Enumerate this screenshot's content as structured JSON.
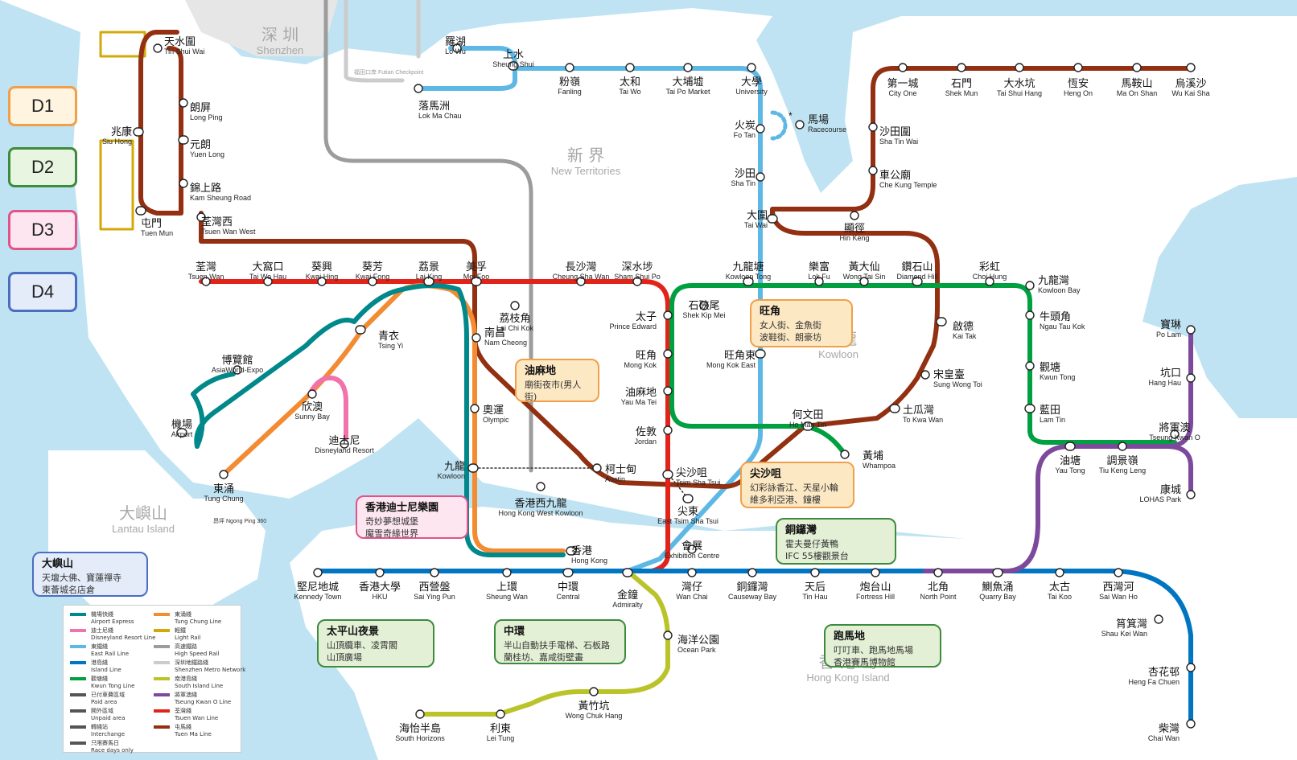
{
  "districts": [
    {
      "label": "D1",
      "color": "#f0a04a",
      "bg": "#fff4e0"
    },
    {
      "label": "D2",
      "color": "#3d8b3d",
      "bg": "#e8f5e0"
    },
    {
      "label": "D3",
      "color": "#e0548a",
      "bg": "#fde6ef"
    },
    {
      "label": "D4",
      "color": "#4a6fc0",
      "bg": "#e4ecfa"
    }
  ],
  "regions": [
    {
      "zh": "深 圳",
      "en": "Shenzhen"
    },
    {
      "zh": "新 界",
      "en": "New Territories"
    },
    {
      "zh": "九 龍",
      "en": "Kowloon"
    },
    {
      "zh": "大嶼山",
      "en": "Lantau Island"
    },
    {
      "zh": "香 港 島",
      "en": "Hong Kong Island"
    }
  ],
  "line_colors": {
    "east_rail": "#5eb8e6",
    "tuen_ma": "#923011",
    "tsuen_wan": "#e2231a",
    "kwun_tong": "#00a040",
    "island": "#0075c2",
    "tung_chung": "#f38b32",
    "airport": "#00888a",
    "disneyland": "#f173ac",
    "tseung_kwan_o": "#7d499d",
    "south_island": "#bac429",
    "light_rail": "#d3a809",
    "high_speed": "#9c9c9c"
  },
  "stations": [
    {
      "zh": "天水圍",
      "en": "Tin Shui Wai"
    },
    {
      "zh": "朗屏",
      "en": "Long Ping"
    },
    {
      "zh": "兆康",
      "en": "Siu Hong"
    },
    {
      "zh": "元朗",
      "en": "Yuen Long"
    },
    {
      "zh": "錦上路",
      "en": "Kam Sheung Road"
    },
    {
      "zh": "屯門",
      "en": "Tuen Mun"
    },
    {
      "zh": "荃灣西",
      "en": "Tsuen Wan West"
    },
    {
      "zh": "羅湖",
      "en": "Lo Wu"
    },
    {
      "zh": "上水",
      "en": "Sheung Shui"
    },
    {
      "zh": "落馬洲",
      "en": "Lok Ma Chau"
    },
    {
      "zh": "粉嶺",
      "en": "Fanling"
    },
    {
      "zh": "太和",
      "en": "Tai Wo"
    },
    {
      "zh": "大埔墟",
      "en": "Tai Po Market"
    },
    {
      "zh": "大學",
      "en": "University"
    },
    {
      "zh": "火炭",
      "en": "Fo Tan"
    },
    {
      "zh": "馬場",
      "en": "Racecourse"
    },
    {
      "zh": "沙田",
      "en": "Sha Tin"
    },
    {
      "zh": "大圍",
      "en": "Tai Wai"
    },
    {
      "zh": "第一城",
      "en": "City One"
    },
    {
      "zh": "石門",
      "en": "Shek Mun"
    },
    {
      "zh": "大水坑",
      "en": "Tai Shui Hang"
    },
    {
      "zh": "恆安",
      "en": "Heng On"
    },
    {
      "zh": "馬鞍山",
      "en": "Ma On Shan"
    },
    {
      "zh": "烏溪沙",
      "en": "Wu Kai Sha"
    },
    {
      "zh": "沙田圍",
      "en": "Sha Tin Wai"
    },
    {
      "zh": "車公廟",
      "en": "Che Kung Temple"
    },
    {
      "zh": "顯徑",
      "en": "Hin Keng"
    },
    {
      "zh": "荃灣",
      "en": "Tsuen Wan"
    },
    {
      "zh": "大窩口",
      "en": "Tai Wo Hau"
    },
    {
      "zh": "葵興",
      "en": "Kwai Hing"
    },
    {
      "zh": "葵芳",
      "en": "Kwai Fong"
    },
    {
      "zh": "荔景",
      "en": "Lai King"
    },
    {
      "zh": "美孚",
      "en": "Mei Foo"
    },
    {
      "zh": "長沙灣",
      "en": "Cheung Sha Wan"
    },
    {
      "zh": "深水埗",
      "en": "Sham Shui Po"
    },
    {
      "zh": "九龍塘",
      "en": "Kowloon Tong"
    },
    {
      "zh": "樂富",
      "en": "Lok Fu"
    },
    {
      "zh": "黃大仙",
      "en": "Wong Tai Sin"
    },
    {
      "zh": "鑽石山",
      "en": "Diamond Hill"
    },
    {
      "zh": "彩虹",
      "en": "Choi Hung"
    },
    {
      "zh": "九龍灣",
      "en": "Kowloon Bay"
    },
    {
      "zh": "荔枝角",
      "en": "Lai Chi Kok"
    },
    {
      "zh": "石硤尾",
      "en": "Shek Kip Mei"
    },
    {
      "zh": "太子",
      "en": "Prince Edward"
    },
    {
      "zh": "旺角",
      "en": "Mong Kok"
    },
    {
      "zh": "旺角東",
      "en": "Mong Kok East"
    },
    {
      "zh": "油麻地",
      "en": "Yau Ma Tei"
    },
    {
      "zh": "佐敦",
      "en": "Jordan"
    },
    {
      "zh": "尖沙咀",
      "en": "Tsim Sha Tsui"
    },
    {
      "zh": "尖東",
      "en": "East Tsim Sha Tsui"
    },
    {
      "zh": "南昌",
      "en": "Nam Cheong"
    },
    {
      "zh": "奧運",
      "en": "Olympic"
    },
    {
      "zh": "九龍",
      "en": "Kowloon"
    },
    {
      "zh": "柯士甸",
      "en": "Austin"
    },
    {
      "zh": "香港西九龍",
      "en": "Hong Kong West Kowloon"
    },
    {
      "zh": "青衣",
      "en": "Tsing Yi"
    },
    {
      "zh": "博覽館",
      "en": "AsiaWorld-Expo"
    },
    {
      "zh": "機場",
      "en": "Airport"
    },
    {
      "zh": "欣澳",
      "en": "Sunny Bay"
    },
    {
      "zh": "迪士尼",
      "en": "Disneyland Resort"
    },
    {
      "zh": "東涌",
      "en": "Tung Chung"
    },
    {
      "zh": "啟德",
      "en": "Kai Tak"
    },
    {
      "zh": "宋皇臺",
      "en": "Sung Wong Toi"
    },
    {
      "zh": "土瓜灣",
      "en": "To Kwa Wan"
    },
    {
      "zh": "何文田",
      "en": "Ho Man Tin"
    },
    {
      "zh": "黃埔",
      "en": "Whampoa"
    },
    {
      "zh": "牛頭角",
      "en": "Ngau Tau Kok"
    },
    {
      "zh": "觀塘",
      "en": "Kwun Tong"
    },
    {
      "zh": "藍田",
      "en": "Lam Tin"
    },
    {
      "zh": "油塘",
      "en": "Yau Tong"
    },
    {
      "zh": "調景嶺",
      "en": "Tiu Keng Leng"
    },
    {
      "zh": "將軍澳",
      "en": "Tseung Kwan O"
    },
    {
      "zh": "寶琳",
      "en": "Po Lam"
    },
    {
      "zh": "坑口",
      "en": "Hang Hau"
    },
    {
      "zh": "康城",
      "en": "LOHAS Park"
    },
    {
      "zh": "會展",
      "en": "Exhibition Centre"
    },
    {
      "zh": "香港",
      "en": "Hong Kong"
    },
    {
      "zh": "堅尼地城",
      "en": "Kennedy Town"
    },
    {
      "zh": "香港大學",
      "en": "HKU"
    },
    {
      "zh": "西營盤",
      "en": "Sai Ying Pun"
    },
    {
      "zh": "上環",
      "en": "Sheung Wan"
    },
    {
      "zh": "中環",
      "en": "Central"
    },
    {
      "zh": "金鐘",
      "en": "Admiralty"
    },
    {
      "zh": "灣仔",
      "en": "Wan Chai"
    },
    {
      "zh": "銅鑼灣",
      "en": "Causeway Bay"
    },
    {
      "zh": "天后",
      "en": "Tin Hau"
    },
    {
      "zh": "炮台山",
      "en": "Fortress Hill"
    },
    {
      "zh": "北角",
      "en": "North Point"
    },
    {
      "zh": "鰂魚涌",
      "en": "Quarry Bay"
    },
    {
      "zh": "太古",
      "en": "Tai Koo"
    },
    {
      "zh": "西灣河",
      "en": "Sai Wan Ho"
    },
    {
      "zh": "筲箕灣",
      "en": "Shau Kei Wan"
    },
    {
      "zh": "杏花邨",
      "en": "Heng Fa Chuen"
    },
    {
      "zh": "柴灣",
      "en": "Chai Wan"
    },
    {
      "zh": "海洋公園",
      "en": "Ocean Park"
    },
    {
      "zh": "黃竹坑",
      "en": "Wong Chuk Hang"
    },
    {
      "zh": "利東",
      "en": "Lei Tung"
    },
    {
      "zh": "海怡半島",
      "en": "South Horizons"
    }
  ],
  "callouts": [
    {
      "title": "旺角",
      "lines": [
        "女人街、金魚街",
        "波鞋街、朗豪坊"
      ],
      "theme": "orange"
    },
    {
      "title": "油麻地",
      "lines": [
        "廟街夜市(男人街)"
      ],
      "theme": "orange"
    },
    {
      "title": "尖沙咀",
      "lines": [
        "幻彩詠香江、天星小輪",
        "維多利亞港、鐘樓"
      ],
      "theme": "orange"
    },
    {
      "title": "香港迪士尼樂園",
      "lines": [
        "奇妙夢想城堡",
        "魔雪奇緣世界"
      ],
      "theme": "pink"
    },
    {
      "title": "大嶼山",
      "lines": [
        "天壇大佛、寶蓮禪寺",
        "東薈城名店倉"
      ],
      "theme": "blue"
    },
    {
      "title": "銅鑼灣",
      "lines": [
        "霍夫曼仔黃鴨",
        "IFC 55樓觀景台"
      ],
      "theme": "green"
    },
    {
      "title": "太平山夜景",
      "lines": [
        "山頂纜車、凌霄閣",
        "山頂廣場"
      ],
      "theme": "green"
    },
    {
      "title": "中環",
      "lines": [
        "半山自動扶手電梯、石板路",
        "蘭桂坊、嘉咸街壁畫"
      ],
      "theme": "green"
    },
    {
      "title": "跑馬地",
      "lines": [
        "叮叮車、跑馬地馬場",
        "香港賽馬博物館"
      ],
      "theme": "green"
    }
  ],
  "legend": [
    {
      "zh": "機場快綫",
      "en": "Airport Express",
      "color": "#00888a"
    },
    {
      "zh": "東涌綫",
      "en": "Tung Chung Line",
      "color": "#f38b32"
    },
    {
      "zh": "迪士尼綫",
      "en": "Disneyland Resort Line",
      "color": "#f173ac"
    },
    {
      "zh": "輕鐵",
      "en": "Light Rail",
      "color": "#d3a809"
    },
    {
      "zh": "東鐵綫",
      "en": "East Rail Line",
      "color": "#5eb8e6"
    },
    {
      "zh": "高速鐵路",
      "en": "High Speed Rail",
      "color": "#9c9c9c"
    },
    {
      "zh": "港島綫",
      "en": "Island Line",
      "color": "#0075c2"
    },
    {
      "zh": "深圳地鐵路綫",
      "en": "Shenzhen Metro Network",
      "color": "#cccccc"
    },
    {
      "zh": "觀塘綫",
      "en": "Kwun Tong Line",
      "color": "#00a040"
    },
    {
      "zh": "南港島綫",
      "en": "South Island Line",
      "color": "#bac429"
    },
    {
      "zh": "已付車費區域",
      "en": "Paid area",
      "color": "#555555"
    },
    {
      "zh": "將軍澳綫",
      "en": "Tseung Kwan O Line",
      "color": "#7d499d"
    },
    {
      "zh": "開外區域",
      "en": "Unpaid area",
      "color": "#555555"
    },
    {
      "zh": "荃灣綫",
      "en": "Tsuen Wan Line",
      "color": "#e2231a"
    },
    {
      "zh": "轉綫站",
      "en": "Interchange",
      "color": "#555555"
    },
    {
      "zh": "屯馬綫",
      "en": "Tuen Ma Line",
      "color": "#923011"
    },
    {
      "zh": "只限賽馬日",
      "en": "Race days only",
      "color": "#555555"
    }
  ],
  "misc": {
    "ngong_ping": "昂坪 Ngong Ping 360",
    "futian": "福田口岸 Futian Checkpoint",
    "race_day_star": "*"
  }
}
